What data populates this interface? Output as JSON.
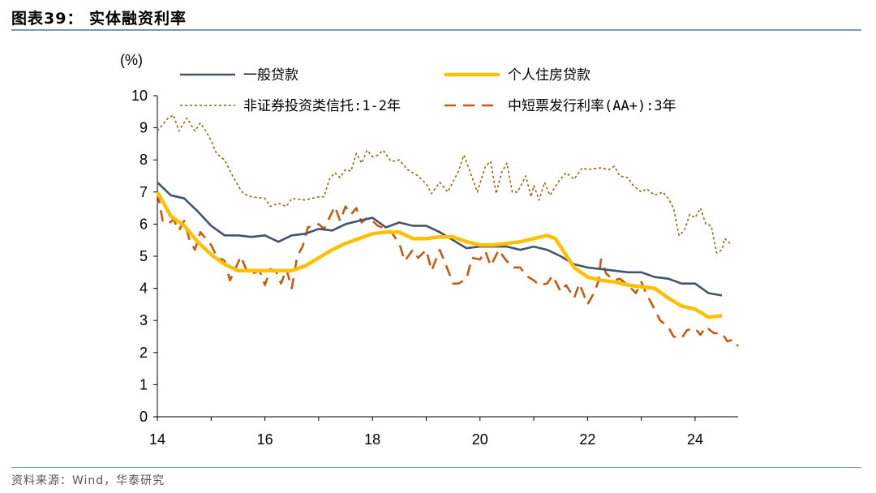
{
  "header": {
    "title": "图表39：  实体融资利率"
  },
  "footer": {
    "source": "资料来源：Wind，华泰研究"
  },
  "chart_data": {
    "type": "line",
    "unit_label": "(%)",
    "xlim": [
      14,
      24.8
    ],
    "ylim": [
      0,
      10
    ],
    "x_ticks": [
      14,
      16,
      18,
      20,
      22,
      24
    ],
    "y_ticks": [
      0,
      1,
      2,
      3,
      4,
      5,
      6,
      7,
      8,
      9,
      10
    ],
    "grid": false,
    "legend_position": "top",
    "series": [
      {
        "name": "一般贷款",
        "color": "#44546a",
        "style": "solid",
        "points": [
          [
            14.0,
            7.3
          ],
          [
            14.25,
            6.9
          ],
          [
            14.5,
            6.8
          ],
          [
            14.75,
            6.4
          ],
          [
            15.0,
            5.95
          ],
          [
            15.25,
            5.65
          ],
          [
            15.5,
            5.65
          ],
          [
            15.75,
            5.6
          ],
          [
            16.0,
            5.65
          ],
          [
            16.25,
            5.45
          ],
          [
            16.5,
            5.65
          ],
          [
            16.75,
            5.7
          ],
          [
            17.0,
            5.85
          ],
          [
            17.25,
            5.8
          ],
          [
            17.5,
            6.0
          ],
          [
            17.75,
            6.1
          ],
          [
            18.0,
            6.2
          ],
          [
            18.25,
            5.9
          ],
          [
            18.5,
            6.05
          ],
          [
            18.75,
            5.95
          ],
          [
            19.0,
            5.95
          ],
          [
            19.25,
            5.75
          ],
          [
            19.5,
            5.5
          ],
          [
            19.75,
            5.25
          ],
          [
            20.0,
            5.3
          ],
          [
            20.25,
            5.3
          ],
          [
            20.5,
            5.3
          ],
          [
            20.75,
            5.2
          ],
          [
            21.0,
            5.3
          ],
          [
            21.25,
            5.2
          ],
          [
            21.5,
            5.0
          ],
          [
            21.75,
            4.75
          ],
          [
            22.0,
            4.65
          ],
          [
            22.25,
            4.6
          ],
          [
            22.5,
            4.55
          ],
          [
            22.75,
            4.5
          ],
          [
            23.0,
            4.5
          ],
          [
            23.25,
            4.35
          ],
          [
            23.5,
            4.3
          ],
          [
            23.75,
            4.15
          ],
          [
            24.0,
            4.15
          ],
          [
            24.25,
            3.85
          ],
          [
            24.5,
            3.78
          ]
        ]
      },
      {
        "name": "个人住房贷款",
        "color": "#ffc000",
        "style": "solid-thick",
        "points": [
          [
            14.0,
            7.0
          ],
          [
            14.25,
            6.25
          ],
          [
            14.5,
            5.95
          ],
          [
            14.75,
            5.45
          ],
          [
            15.0,
            5.05
          ],
          [
            15.25,
            4.75
          ],
          [
            15.5,
            4.55
          ],
          [
            15.75,
            4.55
          ],
          [
            16.0,
            4.55
          ],
          [
            16.25,
            4.55
          ],
          [
            16.5,
            4.55
          ],
          [
            16.75,
            4.7
          ],
          [
            17.0,
            4.95
          ],
          [
            17.25,
            5.2
          ],
          [
            17.5,
            5.4
          ],
          [
            17.75,
            5.55
          ],
          [
            18.0,
            5.7
          ],
          [
            18.25,
            5.75
          ],
          [
            18.5,
            5.75
          ],
          [
            18.75,
            5.55
          ],
          [
            19.0,
            5.55
          ],
          [
            19.25,
            5.6
          ],
          [
            19.5,
            5.6
          ],
          [
            19.75,
            5.45
          ],
          [
            20.0,
            5.35
          ],
          [
            20.25,
            5.35
          ],
          [
            20.5,
            5.4
          ],
          [
            20.75,
            5.45
          ],
          [
            21.0,
            5.55
          ],
          [
            21.25,
            5.65
          ],
          [
            21.4,
            5.55
          ],
          [
            21.75,
            4.65
          ],
          [
            22.0,
            4.35
          ],
          [
            22.25,
            4.25
          ],
          [
            22.5,
            4.2
          ],
          [
            22.75,
            4.1
          ],
          [
            23.0,
            4.05
          ],
          [
            23.25,
            4.0
          ],
          [
            23.5,
            3.7
          ],
          [
            23.75,
            3.45
          ],
          [
            24.0,
            3.35
          ],
          [
            24.25,
            3.1
          ],
          [
            24.5,
            3.15
          ]
        ]
      },
      {
        "name": "非证券投资类信托:1-2年",
        "color": "#8b6914",
        "style": "dotted",
        "points": [
          [
            14.0,
            8.9
          ],
          [
            14.1,
            9.1
          ],
          [
            14.2,
            9.3
          ],
          [
            14.3,
            9.4
          ],
          [
            14.4,
            8.9
          ],
          [
            14.55,
            9.3
          ],
          [
            14.7,
            8.9
          ],
          [
            14.8,
            9.15
          ],
          [
            14.9,
            8.9
          ],
          [
            15.0,
            8.6
          ],
          [
            15.1,
            8.2
          ],
          [
            15.25,
            8.0
          ],
          [
            15.4,
            7.5
          ],
          [
            15.5,
            7.2
          ],
          [
            15.6,
            6.95
          ],
          [
            15.75,
            6.85
          ],
          [
            16.0,
            6.8
          ],
          [
            16.1,
            6.55
          ],
          [
            16.25,
            6.65
          ],
          [
            16.4,
            6.55
          ],
          [
            16.5,
            6.8
          ],
          [
            16.75,
            6.75
          ],
          [
            17.0,
            6.85
          ],
          [
            17.1,
            6.85
          ],
          [
            17.2,
            7.4
          ],
          [
            17.3,
            7.6
          ],
          [
            17.4,
            7.45
          ],
          [
            17.5,
            7.7
          ],
          [
            17.6,
            7.65
          ],
          [
            17.7,
            8.2
          ],
          [
            17.8,
            7.9
          ],
          [
            17.9,
            8.3
          ],
          [
            18.0,
            8.1
          ],
          [
            18.1,
            8.15
          ],
          [
            18.2,
            8.3
          ],
          [
            18.35,
            7.95
          ],
          [
            18.5,
            8.0
          ],
          [
            18.65,
            7.7
          ],
          [
            18.85,
            7.5
          ],
          [
            19.0,
            7.25
          ],
          [
            19.1,
            6.95
          ],
          [
            19.25,
            7.3
          ],
          [
            19.4,
            7.0
          ],
          [
            19.6,
            7.65
          ],
          [
            19.7,
            8.15
          ],
          [
            19.8,
            7.7
          ],
          [
            19.95,
            7.0
          ],
          [
            20.1,
            7.8
          ],
          [
            20.2,
            7.95
          ],
          [
            20.3,
            6.95
          ],
          [
            20.4,
            7.6
          ],
          [
            20.5,
            7.9
          ],
          [
            20.6,
            7.0
          ],
          [
            20.7,
            7.0
          ],
          [
            20.85,
            7.5
          ],
          [
            20.95,
            6.85
          ],
          [
            21.0,
            7.2
          ],
          [
            21.1,
            6.75
          ],
          [
            21.2,
            7.3
          ],
          [
            21.3,
            6.9
          ],
          [
            21.45,
            7.3
          ],
          [
            21.6,
            7.6
          ],
          [
            21.75,
            7.4
          ],
          [
            21.9,
            7.75
          ],
          [
            22.0,
            7.7
          ],
          [
            22.25,
            7.75
          ],
          [
            22.4,
            7.7
          ],
          [
            22.5,
            7.8
          ],
          [
            22.6,
            7.5
          ],
          [
            22.75,
            7.45
          ],
          [
            22.85,
            7.2
          ],
          [
            23.0,
            7.0
          ],
          [
            23.1,
            7.1
          ],
          [
            23.25,
            6.9
          ],
          [
            23.4,
            7.0
          ],
          [
            23.5,
            6.8
          ],
          [
            23.6,
            6.5
          ],
          [
            23.7,
            5.65
          ],
          [
            23.8,
            5.8
          ],
          [
            23.9,
            6.3
          ],
          [
            24.0,
            6.2
          ],
          [
            24.1,
            6.5
          ],
          [
            24.2,
            6.0
          ],
          [
            24.3,
            5.95
          ],
          [
            24.4,
            5.1
          ],
          [
            24.5,
            5.2
          ],
          [
            24.55,
            5.55
          ],
          [
            24.65,
            5.4
          ]
        ]
      },
      {
        "name": "中短票发行利率(AA+):3年",
        "color": "#c55a11",
        "style": "long-dash",
        "points": [
          [
            14.0,
            7.0
          ],
          [
            14.1,
            6.1
          ],
          [
            14.2,
            6.0
          ],
          [
            14.3,
            6.15
          ],
          [
            14.4,
            5.8
          ],
          [
            14.5,
            6.1
          ],
          [
            14.6,
            5.5
          ],
          [
            14.7,
            5.2
          ],
          [
            14.8,
            5.75
          ],
          [
            15.0,
            5.35
          ],
          [
            15.1,
            5.0
          ],
          [
            15.25,
            4.85
          ],
          [
            15.35,
            4.25
          ],
          [
            15.45,
            4.6
          ],
          [
            15.55,
            5.0
          ],
          [
            15.65,
            4.6
          ],
          [
            15.75,
            4.45
          ],
          [
            15.9,
            4.55
          ],
          [
            16.0,
            4.1
          ],
          [
            16.1,
            4.6
          ],
          [
            16.2,
            4.55
          ],
          [
            16.3,
            4.15
          ],
          [
            16.4,
            4.6
          ],
          [
            16.5,
            4.0
          ],
          [
            16.6,
            5.0
          ],
          [
            16.7,
            5.3
          ],
          [
            16.8,
            5.9
          ],
          [
            16.9,
            5.95
          ],
          [
            17.0,
            6.0
          ],
          [
            17.1,
            5.85
          ],
          [
            17.2,
            6.2
          ],
          [
            17.3,
            6.55
          ],
          [
            17.4,
            6.1
          ],
          [
            17.5,
            6.55
          ],
          [
            17.6,
            6.3
          ],
          [
            17.7,
            6.5
          ],
          [
            17.8,
            6.05
          ],
          [
            17.9,
            6.2
          ],
          [
            18.0,
            6.1
          ],
          [
            18.1,
            5.95
          ],
          [
            18.25,
            5.85
          ],
          [
            18.35,
            5.75
          ],
          [
            18.5,
            5.4
          ],
          [
            18.6,
            4.85
          ],
          [
            18.75,
            5.2
          ],
          [
            18.85,
            4.95
          ],
          [
            19.0,
            5.2
          ],
          [
            19.1,
            4.55
          ],
          [
            19.25,
            5.2
          ],
          [
            19.35,
            4.8
          ],
          [
            19.5,
            4.15
          ],
          [
            19.6,
            4.15
          ],
          [
            19.75,
            4.3
          ],
          [
            19.85,
            4.95
          ],
          [
            20.0,
            4.9
          ],
          [
            20.1,
            5.15
          ],
          [
            20.2,
            4.7
          ],
          [
            20.35,
            5.2
          ],
          [
            20.45,
            4.95
          ],
          [
            20.6,
            4.65
          ],
          [
            20.75,
            4.65
          ],
          [
            20.85,
            4.4
          ],
          [
            21.0,
            4.25
          ],
          [
            21.1,
            4.1
          ],
          [
            21.25,
            4.15
          ],
          [
            21.35,
            4.4
          ],
          [
            21.5,
            3.9
          ],
          [
            21.6,
            4.1
          ],
          [
            21.75,
            3.7
          ],
          [
            21.85,
            4.15
          ],
          [
            22.0,
            3.5
          ],
          [
            22.1,
            3.8
          ],
          [
            22.2,
            4.2
          ],
          [
            22.25,
            4.9
          ],
          [
            22.35,
            4.45
          ],
          [
            22.5,
            4.25
          ],
          [
            22.6,
            4.3
          ],
          [
            22.75,
            4.1
          ],
          [
            22.9,
            3.85
          ],
          [
            23.0,
            4.2
          ],
          [
            23.1,
            3.8
          ],
          [
            23.2,
            3.5
          ],
          [
            23.35,
            3.0
          ],
          [
            23.5,
            2.8
          ],
          [
            23.6,
            2.5
          ],
          [
            23.75,
            2.45
          ],
          [
            23.85,
            2.7
          ],
          [
            24.0,
            2.75
          ],
          [
            24.1,
            2.55
          ],
          [
            24.2,
            2.8
          ],
          [
            24.35,
            2.6
          ],
          [
            24.5,
            2.6
          ],
          [
            24.6,
            2.35
          ],
          [
            24.7,
            2.4
          ],
          [
            24.8,
            2.2
          ]
        ]
      }
    ]
  }
}
